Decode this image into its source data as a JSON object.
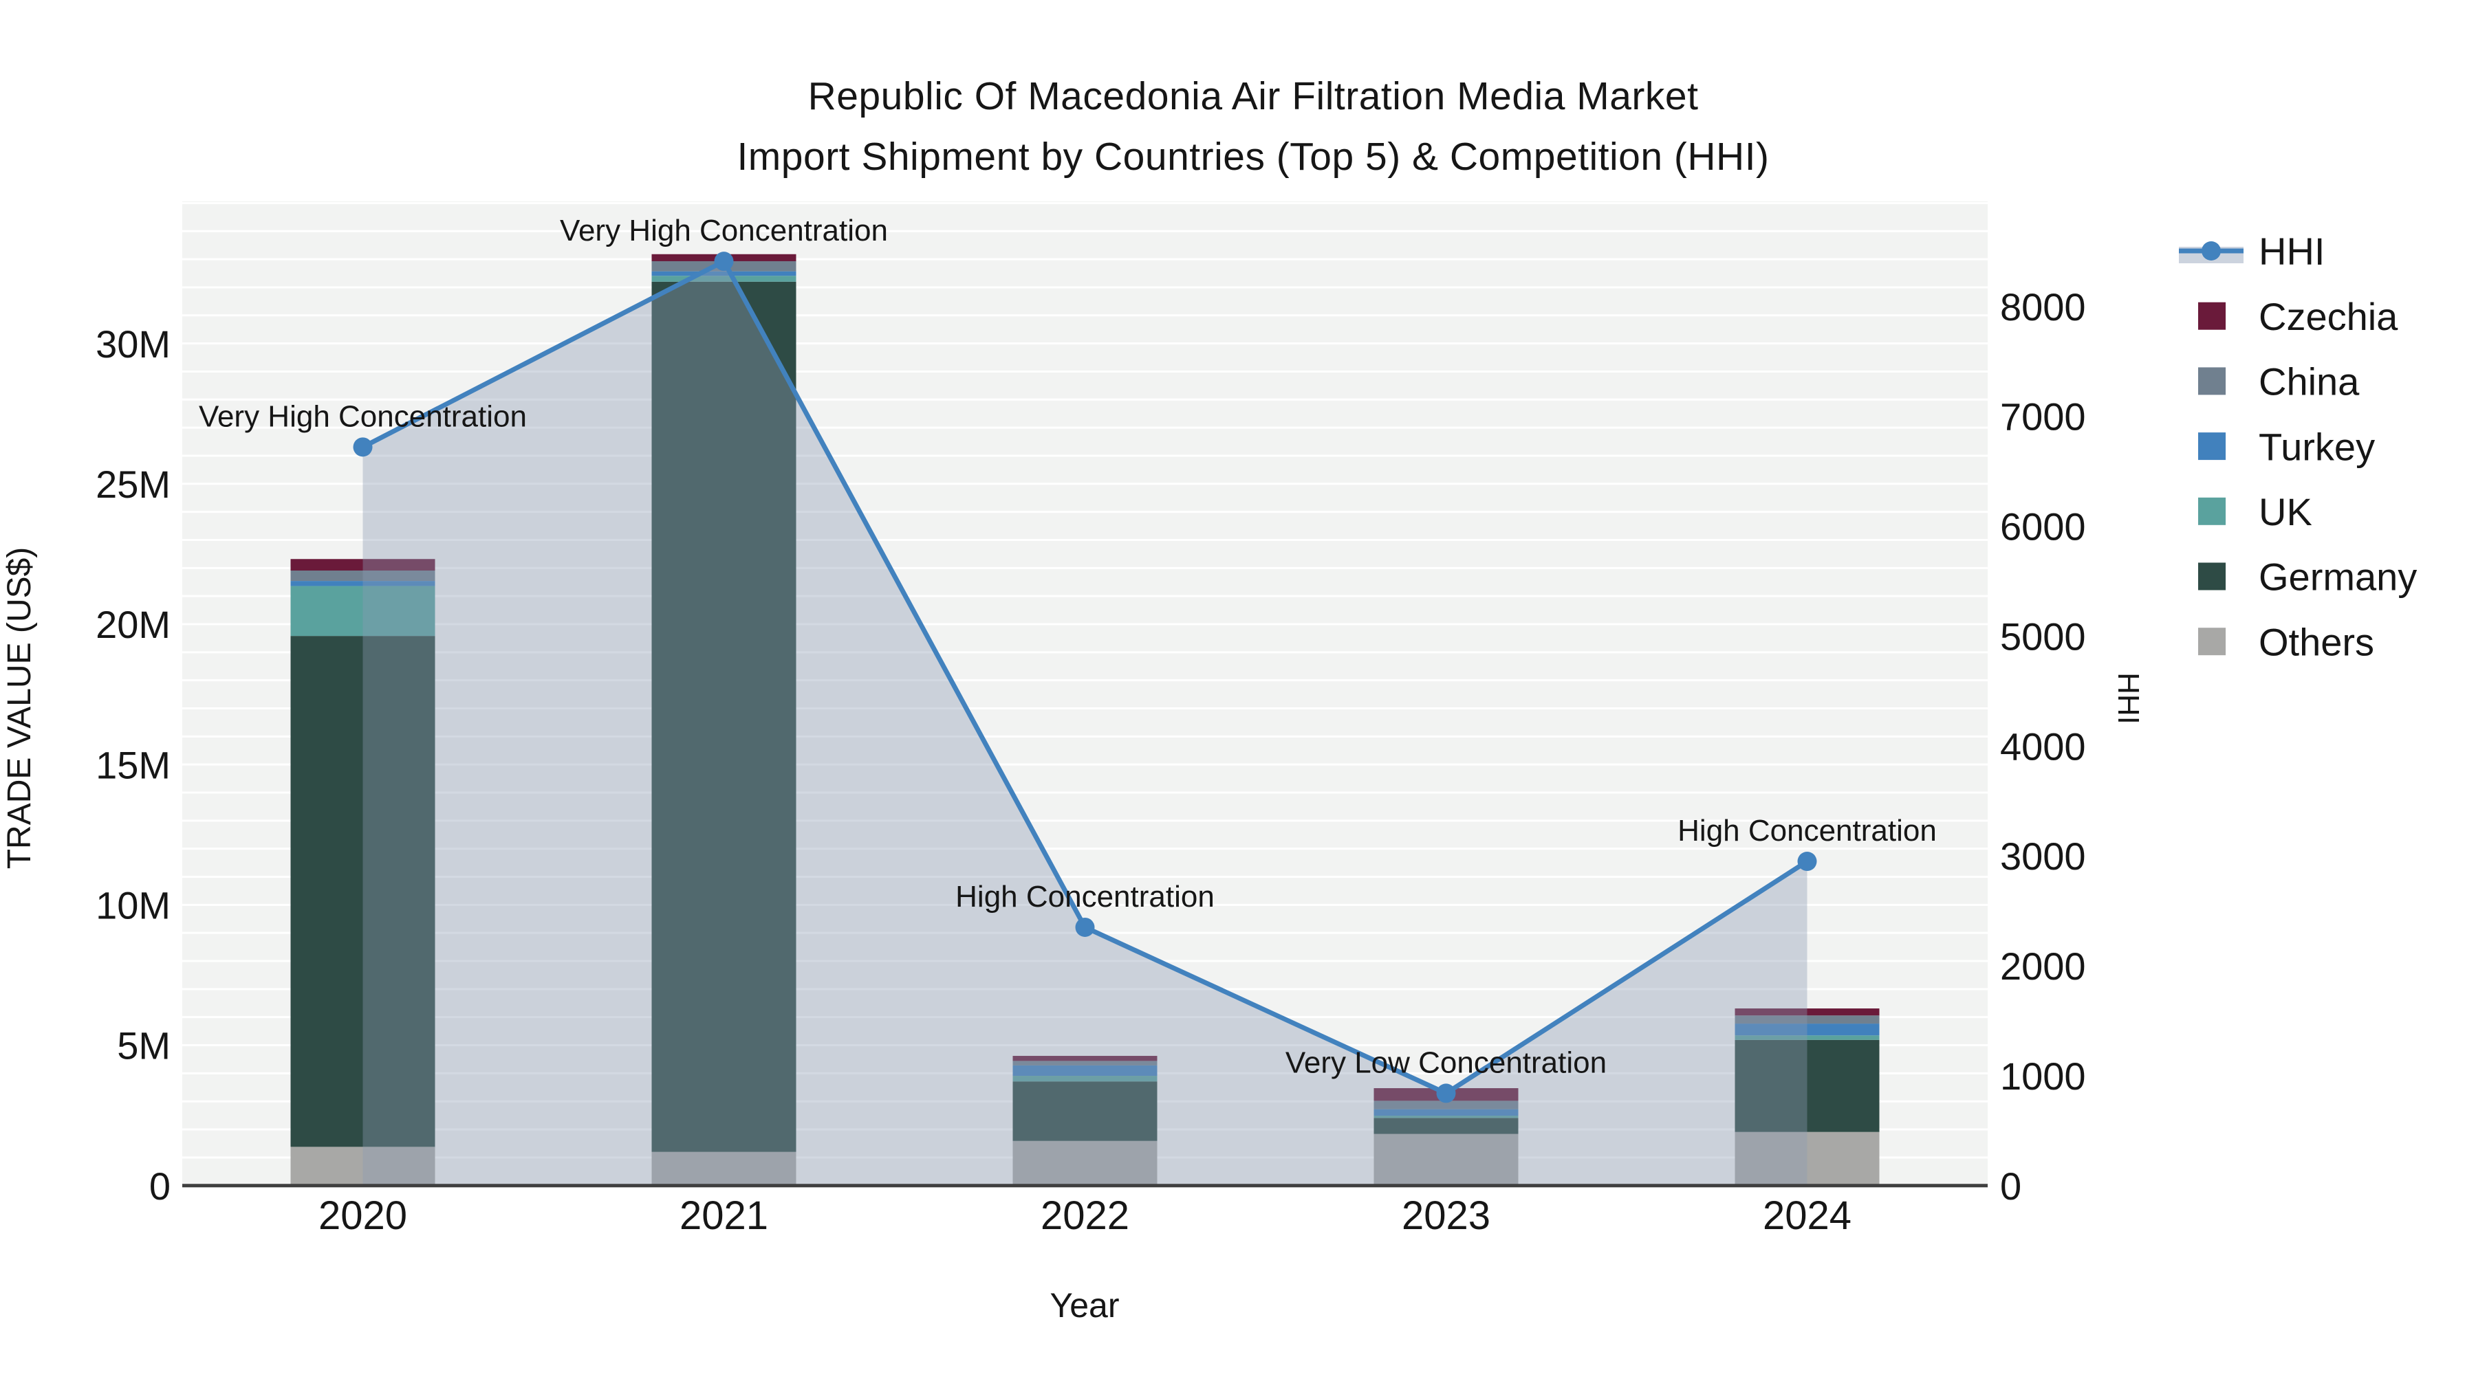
{
  "title": {
    "line1": "Republic Of Macedonia Air Filtration Media Market",
    "line2": "Import Shipment by Countries (Top 5) & Competition (HHI)"
  },
  "axes": {
    "x_title": "Year",
    "y_left_title": "TRADE VALUE (US$)",
    "y_right_title": "HHI"
  },
  "chart_data": {
    "type": "bar+line dual-axis (stacked bars = trade value, line+area = HHI)",
    "categories": [
      "2020",
      "2021",
      "2022",
      "2023",
      "2024"
    ],
    "bar_value_unit": "million US$",
    "series": [
      {
        "name": "Others",
        "color": "#a8a8a6",
        "values": [
          1.38,
          1.2,
          1.59,
          1.84,
          1.91
        ]
      },
      {
        "name": "Germany",
        "color": "#2e4b45",
        "values": [
          18.2,
          31.0,
          2.12,
          0.57,
          3.28
        ]
      },
      {
        "name": "UK",
        "color": "#5aa29e",
        "values": [
          1.78,
          0.21,
          0.2,
          0.08,
          0.16
        ]
      },
      {
        "name": "Turkey",
        "color": "#4181bd",
        "values": [
          0.18,
          0.16,
          0.37,
          0.23,
          0.42
        ]
      },
      {
        "name": "China",
        "color": "#70808f",
        "values": [
          0.37,
          0.36,
          0.16,
          0.3,
          0.29
        ]
      },
      {
        "name": "Czechia",
        "color": "#6a1a3a",
        "values": [
          0.41,
          0.25,
          0.18,
          0.45,
          0.25
        ]
      }
    ],
    "bar_totals_m": [
      22.3,
      33.2,
      4.6,
      3.5,
      6.3
    ],
    "line_series": {
      "name": "HHI",
      "color": "#4282be",
      "area_color": "#8c9bb4",
      "area_opacity": 0.38,
      "values": [
        6720,
        8410,
        2350,
        840,
        2950
      ]
    },
    "annotations": [
      "Very High Concentration",
      "Very High Concentration",
      "High Concentration",
      "Very Low Concentration",
      "High Concentration"
    ],
    "xlabel": "Year",
    "ylabel": "TRADE VALUE (US$)",
    "ylabel_right": "HHI",
    "ylim_left_m": [
      0,
      35.06
    ],
    "ylim_right": [
      0,
      8955
    ],
    "grid": "horizontal minor gridlines every 1M, white on light-gray plot background",
    "legend_position": "right side, outside plot",
    "left_ticks": [
      {
        "label": "0",
        "m": 0
      },
      {
        "label": "5M",
        "m": 5
      },
      {
        "label": "10M",
        "m": 10
      },
      {
        "label": "15M",
        "m": 15
      },
      {
        "label": "20M",
        "m": 20
      },
      {
        "label": "25M",
        "m": 25
      },
      {
        "label": "30M",
        "m": 30
      }
    ],
    "right_ticks": [
      {
        "label": "0",
        "v": 0
      },
      {
        "label": "1000",
        "v": 1000
      },
      {
        "label": "2000",
        "v": 2000
      },
      {
        "label": "3000",
        "v": 3000
      },
      {
        "label": "4000",
        "v": 4000
      },
      {
        "label": "5000",
        "v": 5000
      },
      {
        "label": "6000",
        "v": 6000
      },
      {
        "label": "7000",
        "v": 7000
      },
      {
        "label": "8000",
        "v": 8000
      }
    ]
  },
  "legend": {
    "entries": [
      {
        "label": "HHI",
        "color": "#4282be",
        "swatch": "line-marker-area"
      },
      {
        "label": "Czechia",
        "color": "#6a1a3a",
        "swatch": "square"
      },
      {
        "label": "China",
        "color": "#70808f",
        "swatch": "square"
      },
      {
        "label": "Turkey",
        "color": "#4181bd",
        "swatch": "square"
      },
      {
        "label": "UK",
        "color": "#5aa29e",
        "swatch": "square"
      },
      {
        "label": "Germany",
        "color": "#2e4b45",
        "swatch": "square"
      },
      {
        "label": "Others",
        "color": "#a8a8a6",
        "swatch": "square"
      }
    ]
  },
  "colors": {
    "plot_bg": "#f2f3f2",
    "gridline": "#ffffff",
    "axis_line": "#3f3f3f",
    "text": "#161616"
  }
}
